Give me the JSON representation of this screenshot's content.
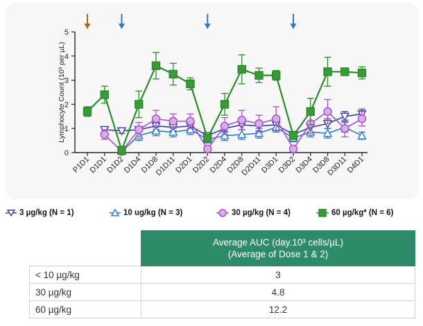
{
  "chart_data": {
    "type": "line",
    "ylabel": "Lymphocyte Count (10³ per µL)",
    "ylim": [
      0,
      5
    ],
    "yticks": [
      "0",
      "1",
      "2",
      "3",
      "4",
      "5"
    ],
    "categories": [
      "P1D1",
      "D1D1",
      "D1D2",
      "D1D4",
      "D1D8",
      "D1D11",
      "D2D1",
      "D2D2",
      "D2D4",
      "D2D8",
      "D2D11",
      "D3D1",
      "D3D2",
      "D3D4",
      "D3D8",
      "D3D11",
      "D4D1"
    ],
    "series": [
      {
        "name": "3 µg/kg (N = 1)",
        "color": "#3d3d9e",
        "marker": "triangle-down",
        "values": [
          null,
          0.95,
          0.9,
          0.95,
          1.1,
          1.05,
          1.1,
          0.7,
          1.0,
          1.15,
          1.1,
          1.15,
          0.75,
          1.05,
          1.2,
          1.5,
          1.6
        ],
        "errors": [
          null,
          0.1,
          0.1,
          0.1,
          0.15,
          0.15,
          0.15,
          0.1,
          0.15,
          0.2,
          0.2,
          0.2,
          0.1,
          0.2,
          0.2,
          0.2,
          0.2
        ]
      },
      {
        "name": "10 ug/kg (N = 3)",
        "color": "#2e7bc4",
        "marker": "triangle-up",
        "values": [
          null,
          null,
          0.05,
          0.7,
          0.9,
          0.85,
          0.95,
          0.55,
          0.7,
          0.75,
          0.8,
          1.05,
          0.6,
          0.85,
          0.8,
          1.05,
          0.7
        ],
        "errors": [
          null,
          null,
          0.05,
          0.2,
          0.2,
          0.2,
          0.2,
          0.15,
          0.2,
          0.2,
          0.2,
          0.2,
          0.15,
          0.2,
          0.2,
          0.2,
          0.15
        ]
      },
      {
        "name": "30 µg/kg (N = 4)",
        "color": "#a64ecb",
        "marker": "circle",
        "values": [
          null,
          0.75,
          0.05,
          0.95,
          1.4,
          1.3,
          1.3,
          0.15,
          1.1,
          1.35,
          1.2,
          1.4,
          0.15,
          1.2,
          1.7,
          1.0,
          1.4
        ],
        "errors": [
          null,
          0.2,
          0.05,
          0.3,
          0.35,
          0.3,
          0.3,
          0.1,
          0.35,
          0.4,
          0.35,
          0.5,
          0.1,
          0.4,
          0.5,
          0.35,
          0.3
        ],
        "fill": "#d6aee8"
      },
      {
        "name": "60 µg/kg* (N = 6)",
        "color": "#2a8a2a",
        "marker": "square",
        "values": [
          1.7,
          2.4,
          0.1,
          2.0,
          3.6,
          3.25,
          2.85,
          0.6,
          2.0,
          3.45,
          3.2,
          3.2,
          0.7,
          1.7,
          3.35,
          3.35,
          3.3
        ],
        "errors": [
          0.2,
          0.35,
          0.05,
          0.55,
          0.55,
          0.45,
          0.25,
          0.15,
          0.45,
          0.6,
          0.3,
          0.2,
          0.15,
          0.55,
          0.6,
          0.15,
          0.25
        ],
        "fill": "#3a9a3a"
      }
    ],
    "arrows": [
      {
        "category": "P1D1",
        "color": "#a66a1c"
      },
      {
        "category": "D1D2",
        "color": "#2e7bc4"
      },
      {
        "category": "D2D2",
        "color": "#2e7bc4"
      },
      {
        "category": "D3D2",
        "color": "#2e7bc4"
      }
    ]
  },
  "legend": {
    "items": [
      {
        "label": "3 µg/kg (N = 1)"
      },
      {
        "label": "10 ug/kg (N = 3)"
      },
      {
        "label": "30 µg/kg (N = 4)"
      },
      {
        "label": "60 µg/kg* (N = 6)"
      }
    ]
  },
  "table": {
    "header_line1": "Average AUC (day.10³ cells/µL)",
    "header_line2": "(Average of Dose 1 & 2)",
    "rows": [
      {
        "dose": "< 10 µg/kg",
        "value": "3"
      },
      {
        "dose": "30 µg/kg",
        "value": "4.8"
      },
      {
        "dose": "60 µg/kg",
        "value": "12.2"
      }
    ]
  }
}
